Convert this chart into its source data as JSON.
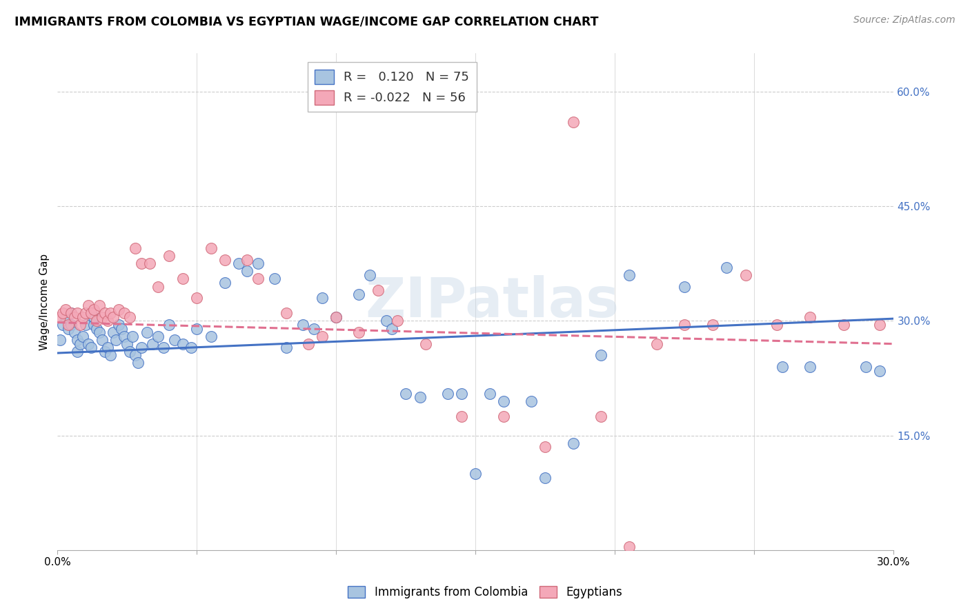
{
  "title": "IMMIGRANTS FROM COLOMBIA VS EGYPTIAN WAGE/INCOME GAP CORRELATION CHART",
  "source": "Source: ZipAtlas.com",
  "ylabel": "Wage/Income Gap",
  "xlim": [
    0.0,
    0.3
  ],
  "ylim": [
    0.0,
    0.65
  ],
  "yticks_right": [
    0.15,
    0.3,
    0.45,
    0.6
  ],
  "ytick_right_labels": [
    "15.0%",
    "30.0%",
    "45.0%",
    "60.0%"
  ],
  "r_colombia": 0.12,
  "n_colombia": 75,
  "r_egypt": -0.022,
  "n_egypt": 56,
  "colombia_color": "#a8c4e0",
  "egypt_color": "#f4a8b8",
  "colombia_line_color": "#4472c4",
  "egypt_line_color": "#e07090",
  "watermark": "ZIPatlas",
  "legend_labels": [
    "Immigrants from Colombia",
    "Egyptians"
  ],
  "colombia_points_x": [
    0.001,
    0.002,
    0.003,
    0.004,
    0.005,
    0.005,
    0.006,
    0.007,
    0.007,
    0.008,
    0.009,
    0.01,
    0.011,
    0.012,
    0.013,
    0.013,
    0.014,
    0.015,
    0.016,
    0.017,
    0.018,
    0.019,
    0.02,
    0.021,
    0.022,
    0.023,
    0.024,
    0.025,
    0.026,
    0.027,
    0.028,
    0.029,
    0.03,
    0.032,
    0.034,
    0.036,
    0.038,
    0.04,
    0.042,
    0.045,
    0.048,
    0.05,
    0.055,
    0.06,
    0.065,
    0.068,
    0.072,
    0.078,
    0.082,
    0.088,
    0.092,
    0.095,
    0.1,
    0.108,
    0.112,
    0.118,
    0.12,
    0.125,
    0.13,
    0.14,
    0.145,
    0.15,
    0.155,
    0.16,
    0.17,
    0.175,
    0.185,
    0.195,
    0.205,
    0.225,
    0.24,
    0.26,
    0.27,
    0.29,
    0.295
  ],
  "colombia_points_y": [
    0.275,
    0.295,
    0.305,
    0.29,
    0.31,
    0.295,
    0.285,
    0.275,
    0.26,
    0.27,
    0.28,
    0.295,
    0.27,
    0.265,
    0.295,
    0.305,
    0.29,
    0.285,
    0.275,
    0.26,
    0.265,
    0.255,
    0.285,
    0.275,
    0.295,
    0.29,
    0.28,
    0.27,
    0.26,
    0.28,
    0.255,
    0.245,
    0.265,
    0.285,
    0.27,
    0.28,
    0.265,
    0.295,
    0.275,
    0.27,
    0.265,
    0.29,
    0.28,
    0.35,
    0.375,
    0.365,
    0.375,
    0.355,
    0.265,
    0.295,
    0.29,
    0.33,
    0.305,
    0.335,
    0.36,
    0.3,
    0.29,
    0.205,
    0.2,
    0.205,
    0.205,
    0.1,
    0.205,
    0.195,
    0.195,
    0.095,
    0.14,
    0.255,
    0.36,
    0.345,
    0.37,
    0.24,
    0.24,
    0.24,
    0.235
  ],
  "egypt_points_x": [
    0.001,
    0.002,
    0.003,
    0.004,
    0.005,
    0.006,
    0.007,
    0.008,
    0.009,
    0.01,
    0.011,
    0.012,
    0.013,
    0.014,
    0.015,
    0.016,
    0.017,
    0.018,
    0.019,
    0.02,
    0.022,
    0.024,
    0.026,
    0.028,
    0.03,
    0.033,
    0.036,
    0.04,
    0.045,
    0.05,
    0.055,
    0.06,
    0.068,
    0.072,
    0.082,
    0.09,
    0.095,
    0.1,
    0.108,
    0.115,
    0.122,
    0.132,
    0.145,
    0.16,
    0.175,
    0.185,
    0.195,
    0.205,
    0.215,
    0.225,
    0.235,
    0.247,
    0.258,
    0.27,
    0.282,
    0.295
  ],
  "egypt_points_y": [
    0.305,
    0.31,
    0.315,
    0.295,
    0.31,
    0.305,
    0.31,
    0.295,
    0.305,
    0.31,
    0.32,
    0.31,
    0.315,
    0.3,
    0.32,
    0.305,
    0.31,
    0.3,
    0.31,
    0.305,
    0.315,
    0.31,
    0.305,
    0.395,
    0.375,
    0.375,
    0.345,
    0.385,
    0.355,
    0.33,
    0.395,
    0.38,
    0.38,
    0.355,
    0.31,
    0.27,
    0.28,
    0.305,
    0.285,
    0.34,
    0.3,
    0.27,
    0.175,
    0.175,
    0.135,
    0.56,
    0.175,
    0.005,
    0.27,
    0.295,
    0.295,
    0.36,
    0.295,
    0.305,
    0.295,
    0.295
  ],
  "colombia_trend": [
    0.258,
    0.303
  ],
  "egypt_trend": [
    0.298,
    0.27
  ]
}
